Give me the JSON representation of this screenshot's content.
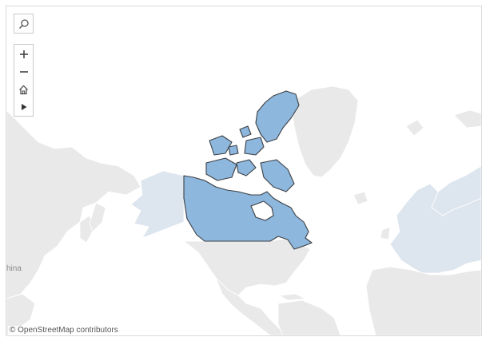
{
  "map": {
    "basemap": "light gray world map",
    "highlighted_region": "Canada",
    "colors": {
      "ocean": "#ffffff",
      "land": "#e9e9e9",
      "land_border": "#ffffff",
      "tinted_land": "#dde5ee",
      "highlight_fill": "#8db7dd",
      "highlight_stroke": "#3c3f44"
    },
    "place_labels": {
      "china": "hina"
    },
    "attribution": "© OpenStreetMap contributors"
  },
  "toolbar": {
    "search_icon": "search-icon",
    "zoom_in_icon": "plus-icon",
    "zoom_out_icon": "minus-icon",
    "home_icon": "home-icon",
    "pan_icon": "play-arrow-icon"
  }
}
